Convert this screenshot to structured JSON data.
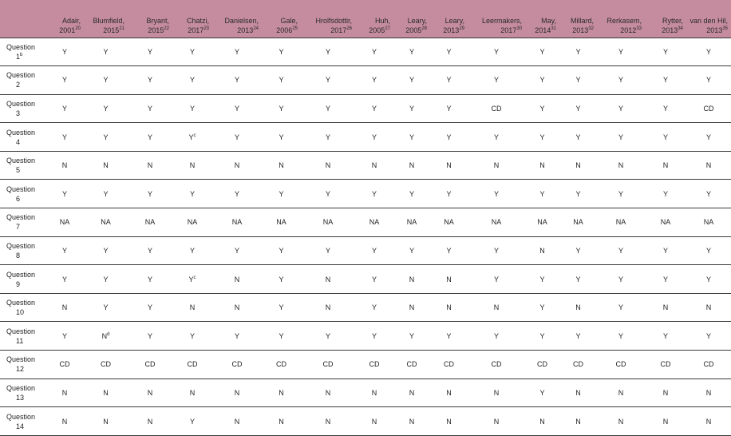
{
  "table": {
    "columns": [
      {
        "author": "Adair,",
        "year": "2001",
        "ref": "20"
      },
      {
        "author": "Blumfield,",
        "year": "2015",
        "ref": "21"
      },
      {
        "author": "Bryant,",
        "year": "2015",
        "ref": "22"
      },
      {
        "author": "Chatzi,",
        "year": "2017",
        "ref": "23"
      },
      {
        "author": "Danielsen,",
        "year": "2013",
        "ref": "24"
      },
      {
        "author": "Gale,",
        "year": "2006",
        "ref": "25"
      },
      {
        "author": "Hrolfsdottir,",
        "year": "2017",
        "ref": "26"
      },
      {
        "author": "Huh,",
        "year": "2005",
        "ref": "27"
      },
      {
        "author": "Leary,",
        "year": "2005",
        "ref": "28"
      },
      {
        "author": "Leary,",
        "year": "2013",
        "ref": "29"
      },
      {
        "author": "Leermakers,",
        "year": "2017",
        "ref": "30"
      },
      {
        "author": "May,",
        "year": "2014",
        "ref": "31"
      },
      {
        "author": "Millard,",
        "year": "2013",
        "ref": "32"
      },
      {
        "author": "Rerkasem,",
        "year": "2012",
        "ref": "33"
      },
      {
        "author": "Rytter,",
        "year": "2013",
        "ref": "34"
      },
      {
        "author": "van den Hil,",
        "year": "2013",
        "ref": "35"
      }
    ],
    "rows": [
      {
        "label": "Question",
        "num": "1",
        "sup": "b",
        "cells": [
          [
            "Y",
            ""
          ],
          [
            "Y",
            ""
          ],
          [
            "Y",
            ""
          ],
          [
            "Y",
            ""
          ],
          [
            "Y",
            ""
          ],
          [
            "Y",
            ""
          ],
          [
            "Y",
            ""
          ],
          [
            "Y",
            ""
          ],
          [
            "Y",
            ""
          ],
          [
            "Y",
            ""
          ],
          [
            "Y",
            ""
          ],
          [
            "Y",
            ""
          ],
          [
            "Y",
            ""
          ],
          [
            "Y",
            ""
          ],
          [
            "Y",
            ""
          ],
          [
            "Y",
            ""
          ]
        ]
      },
      {
        "label": "Question",
        "num": "2",
        "sup": "",
        "cells": [
          [
            "Y",
            ""
          ],
          [
            "Y",
            ""
          ],
          [
            "Y",
            ""
          ],
          [
            "Y",
            ""
          ],
          [
            "Y",
            ""
          ],
          [
            "Y",
            ""
          ],
          [
            "Y",
            ""
          ],
          [
            "Y",
            ""
          ],
          [
            "Y",
            ""
          ],
          [
            "Y",
            ""
          ],
          [
            "Y",
            ""
          ],
          [
            "Y",
            ""
          ],
          [
            "Y",
            ""
          ],
          [
            "Y",
            ""
          ],
          [
            "Y",
            ""
          ],
          [
            "Y",
            ""
          ]
        ]
      },
      {
        "label": "Question",
        "num": "3",
        "sup": "",
        "cells": [
          [
            "Y",
            ""
          ],
          [
            "Y",
            ""
          ],
          [
            "Y",
            ""
          ],
          [
            "Y",
            ""
          ],
          [
            "Y",
            ""
          ],
          [
            "Y",
            ""
          ],
          [
            "Y",
            ""
          ],
          [
            "Y",
            ""
          ],
          [
            "Y",
            ""
          ],
          [
            "Y",
            ""
          ],
          [
            "CD",
            ""
          ],
          [
            "Y",
            ""
          ],
          [
            "Y",
            ""
          ],
          [
            "Y",
            ""
          ],
          [
            "Y",
            ""
          ],
          [
            "CD",
            ""
          ]
        ]
      },
      {
        "label": "Question",
        "num": "4",
        "sup": "",
        "cells": [
          [
            "Y",
            ""
          ],
          [
            "Y",
            ""
          ],
          [
            "Y",
            ""
          ],
          [
            "Y",
            "c"
          ],
          [
            "Y",
            ""
          ],
          [
            "Y",
            ""
          ],
          [
            "Y",
            ""
          ],
          [
            "Y",
            ""
          ],
          [
            "Y",
            ""
          ],
          [
            "Y",
            ""
          ],
          [
            "Y",
            ""
          ],
          [
            "Y",
            ""
          ],
          [
            "Y",
            ""
          ],
          [
            "Y",
            ""
          ],
          [
            "Y",
            ""
          ],
          [
            "Y",
            ""
          ]
        ]
      },
      {
        "label": "Question",
        "num": "5",
        "sup": "",
        "cells": [
          [
            "N",
            ""
          ],
          [
            "N",
            ""
          ],
          [
            "N",
            ""
          ],
          [
            "N",
            ""
          ],
          [
            "N",
            ""
          ],
          [
            "N",
            ""
          ],
          [
            "N",
            ""
          ],
          [
            "N",
            ""
          ],
          [
            "N",
            ""
          ],
          [
            "N",
            ""
          ],
          [
            "N",
            ""
          ],
          [
            "N",
            ""
          ],
          [
            "N",
            ""
          ],
          [
            "N",
            ""
          ],
          [
            "N",
            ""
          ],
          [
            "N",
            ""
          ]
        ]
      },
      {
        "label": "Question",
        "num": "6",
        "sup": "",
        "cells": [
          [
            "Y",
            ""
          ],
          [
            "Y",
            ""
          ],
          [
            "Y",
            ""
          ],
          [
            "Y",
            ""
          ],
          [
            "Y",
            ""
          ],
          [
            "Y",
            ""
          ],
          [
            "Y",
            ""
          ],
          [
            "Y",
            ""
          ],
          [
            "Y",
            ""
          ],
          [
            "Y",
            ""
          ],
          [
            "Y",
            ""
          ],
          [
            "Y",
            ""
          ],
          [
            "Y",
            ""
          ],
          [
            "Y",
            ""
          ],
          [
            "Y",
            ""
          ],
          [
            "Y",
            ""
          ]
        ]
      },
      {
        "label": "Question",
        "num": "7",
        "sup": "",
        "cells": [
          [
            "NA",
            ""
          ],
          [
            "NA",
            ""
          ],
          [
            "NA",
            ""
          ],
          [
            "NA",
            ""
          ],
          [
            "NA",
            ""
          ],
          [
            "NA",
            ""
          ],
          [
            "NA",
            ""
          ],
          [
            "NA",
            ""
          ],
          [
            "NA",
            ""
          ],
          [
            "NA",
            ""
          ],
          [
            "NA",
            ""
          ],
          [
            "NA",
            ""
          ],
          [
            "NA",
            ""
          ],
          [
            "NA",
            ""
          ],
          [
            "NA",
            ""
          ],
          [
            "NA",
            ""
          ]
        ]
      },
      {
        "label": "Question",
        "num": "8",
        "sup": "",
        "cells": [
          [
            "Y",
            ""
          ],
          [
            "Y",
            ""
          ],
          [
            "Y",
            ""
          ],
          [
            "Y",
            ""
          ],
          [
            "Y",
            ""
          ],
          [
            "Y",
            ""
          ],
          [
            "Y",
            ""
          ],
          [
            "Y",
            ""
          ],
          [
            "Y",
            ""
          ],
          [
            "Y",
            ""
          ],
          [
            "Y",
            ""
          ],
          [
            "N",
            ""
          ],
          [
            "Y",
            ""
          ],
          [
            "Y",
            ""
          ],
          [
            "Y",
            ""
          ],
          [
            "Y",
            ""
          ]
        ]
      },
      {
        "label": "Question",
        "num": "9",
        "sup": "",
        "cells": [
          [
            "Y",
            ""
          ],
          [
            "Y",
            ""
          ],
          [
            "Y",
            ""
          ],
          [
            "Y",
            "c"
          ],
          [
            "N",
            ""
          ],
          [
            "Y",
            ""
          ],
          [
            "N",
            ""
          ],
          [
            "Y",
            ""
          ],
          [
            "N",
            ""
          ],
          [
            "N",
            ""
          ],
          [
            "Y",
            ""
          ],
          [
            "Y",
            ""
          ],
          [
            "Y",
            ""
          ],
          [
            "Y",
            ""
          ],
          [
            "Y",
            ""
          ],
          [
            "Y",
            ""
          ]
        ]
      },
      {
        "label": "Question",
        "num": "10",
        "sup": "",
        "cells": [
          [
            "N",
            ""
          ],
          [
            "Y",
            ""
          ],
          [
            "Y",
            ""
          ],
          [
            "N",
            ""
          ],
          [
            "N",
            ""
          ],
          [
            "Y",
            ""
          ],
          [
            "N",
            ""
          ],
          [
            "Y",
            ""
          ],
          [
            "N",
            ""
          ],
          [
            "N",
            ""
          ],
          [
            "N",
            ""
          ],
          [
            "Y",
            ""
          ],
          [
            "N",
            ""
          ],
          [
            "Y",
            ""
          ],
          [
            "N",
            ""
          ],
          [
            "N",
            ""
          ]
        ]
      },
      {
        "label": "Question",
        "num": "11",
        "sup": "",
        "cells": [
          [
            "Y",
            ""
          ],
          [
            "N",
            "d"
          ],
          [
            "Y",
            ""
          ],
          [
            "Y",
            ""
          ],
          [
            "Y",
            ""
          ],
          [
            "Y",
            ""
          ],
          [
            "Y",
            ""
          ],
          [
            "Y",
            ""
          ],
          [
            "Y",
            ""
          ],
          [
            "Y",
            ""
          ],
          [
            "Y",
            ""
          ],
          [
            "Y",
            ""
          ],
          [
            "Y",
            ""
          ],
          [
            "Y",
            ""
          ],
          [
            "Y",
            ""
          ],
          [
            "Y",
            ""
          ]
        ]
      },
      {
        "label": "Question",
        "num": "12",
        "sup": "",
        "cells": [
          [
            "CD",
            ""
          ],
          [
            "CD",
            ""
          ],
          [
            "CD",
            ""
          ],
          [
            "CD",
            ""
          ],
          [
            "CD",
            ""
          ],
          [
            "CD",
            ""
          ],
          [
            "CD",
            ""
          ],
          [
            "CD",
            ""
          ],
          [
            "CD",
            ""
          ],
          [
            "CD",
            ""
          ],
          [
            "CD",
            ""
          ],
          [
            "CD",
            ""
          ],
          [
            "CD",
            ""
          ],
          [
            "CD",
            ""
          ],
          [
            "CD",
            ""
          ],
          [
            "CD",
            ""
          ]
        ]
      },
      {
        "label": "Question",
        "num": "13",
        "sup": "",
        "cells": [
          [
            "N",
            ""
          ],
          [
            "N",
            ""
          ],
          [
            "N",
            ""
          ],
          [
            "N",
            ""
          ],
          [
            "N",
            ""
          ],
          [
            "N",
            ""
          ],
          [
            "N",
            ""
          ],
          [
            "N",
            ""
          ],
          [
            "N",
            ""
          ],
          [
            "N",
            ""
          ],
          [
            "N",
            ""
          ],
          [
            "Y",
            ""
          ],
          [
            "N",
            ""
          ],
          [
            "N",
            ""
          ],
          [
            "N",
            ""
          ],
          [
            "N",
            ""
          ]
        ]
      },
      {
        "label": "Question",
        "num": "14",
        "sup": "",
        "cells": [
          [
            "N",
            ""
          ],
          [
            "N",
            ""
          ],
          [
            "N",
            ""
          ],
          [
            "Y",
            ""
          ],
          [
            "N",
            ""
          ],
          [
            "N",
            ""
          ],
          [
            "N",
            ""
          ],
          [
            "N",
            ""
          ],
          [
            "N",
            ""
          ],
          [
            "N",
            ""
          ],
          [
            "N",
            ""
          ],
          [
            "N",
            ""
          ],
          [
            "N",
            ""
          ],
          [
            "N",
            ""
          ],
          [
            "N",
            ""
          ],
          [
            "N",
            ""
          ]
        ]
      }
    ]
  }
}
